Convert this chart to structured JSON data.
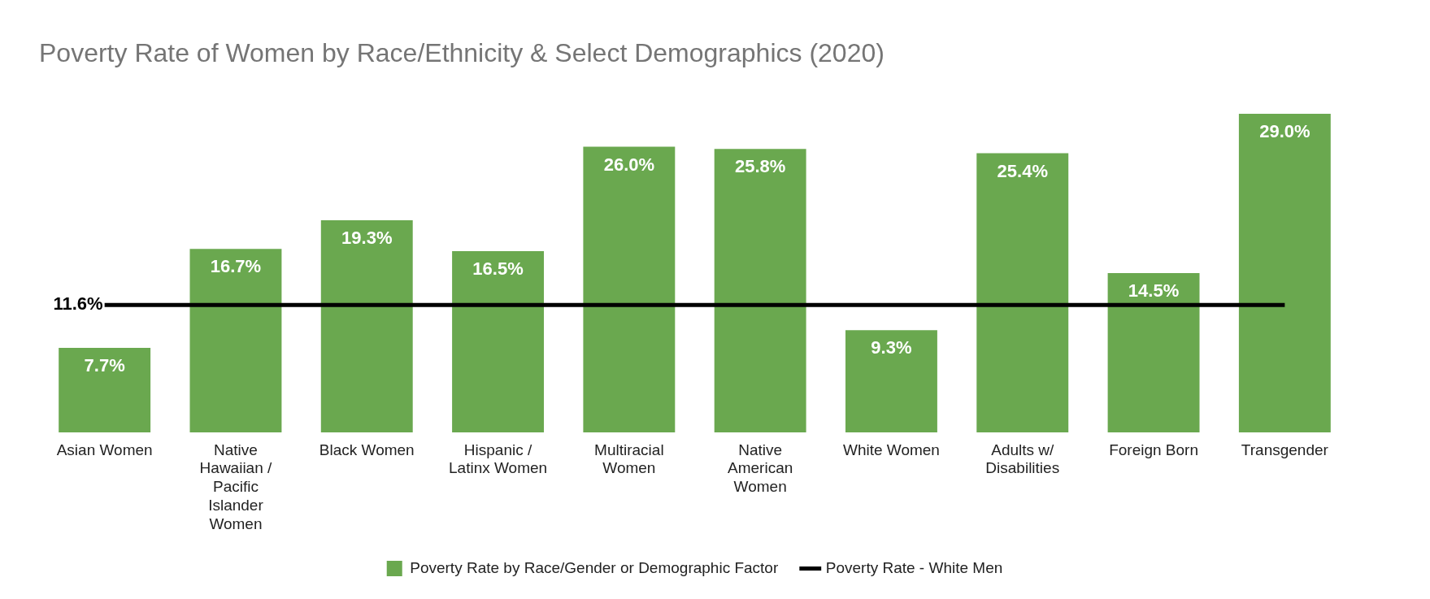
{
  "chart_data": {
    "type": "bar",
    "title": "Poverty Rate of Women by Race/Ethnicity & Select Demographics (2020)",
    "categories": [
      "Asian Women",
      "Native Hawaiian / Pacific Islander Women",
      "Black Women",
      "Hispanic / Latinx Women",
      "Multiracial Women",
      "Native American Women",
      "White Women",
      "Adults w/ Disabilities",
      "Foreign Born",
      "Transgender"
    ],
    "series": [
      {
        "name": "Poverty Rate by Race/Gender or Demographic Factor",
        "color": "#6aa84f",
        "values": [
          7.7,
          16.7,
          19.3,
          16.5,
          26.0,
          25.8,
          9.3,
          25.4,
          14.5,
          29.0
        ],
        "value_labels": [
          "7.7%",
          "16.7%",
          "19.3%",
          "16.5%",
          "26.0%",
          "25.8%",
          "9.3%",
          "25.4%",
          "14.5%",
          "29.0%"
        ]
      },
      {
        "name": "Poverty Rate - White Men",
        "type": "line",
        "color": "#000000",
        "marker": "none",
        "values": [
          11.6,
          11.6,
          11.6,
          11.6,
          11.6,
          11.6,
          11.6,
          11.6,
          11.6,
          11.6
        ],
        "value_labels": [
          "11.6%",
          null,
          null,
          null,
          null,
          null,
          null,
          null,
          null,
          null
        ]
      }
    ],
    "tick_labels": "x",
    "grid": false,
    "legend": "bottom"
  }
}
